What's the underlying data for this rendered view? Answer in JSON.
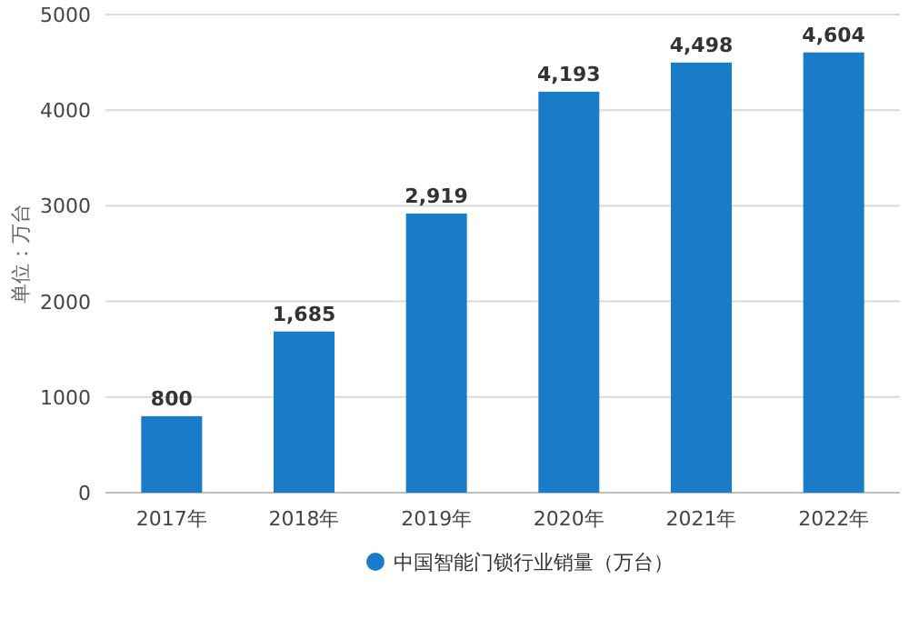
{
  "chart_data": {
    "type": "bar",
    "ylabel": "单位：万台",
    "categories": [
      "2017年",
      "2018年",
      "2019年",
      "2020年",
      "2021年",
      "2022年"
    ],
    "series": [
      {
        "name": "中国智能门锁行业销量（万台）",
        "color": "#1a7bc8",
        "values": [
          800,
          1685,
          2919,
          4193,
          4498,
          4604
        ]
      }
    ],
    "value_labels": [
      "800",
      "1,685",
      "2,919",
      "4,193",
      "4,498",
      "4,604"
    ],
    "ylim": [
      0,
      5000
    ],
    "yticks": [
      0,
      1000,
      2000,
      3000,
      4000,
      5000
    ],
    "grid": "y",
    "legend": "bottom"
  }
}
